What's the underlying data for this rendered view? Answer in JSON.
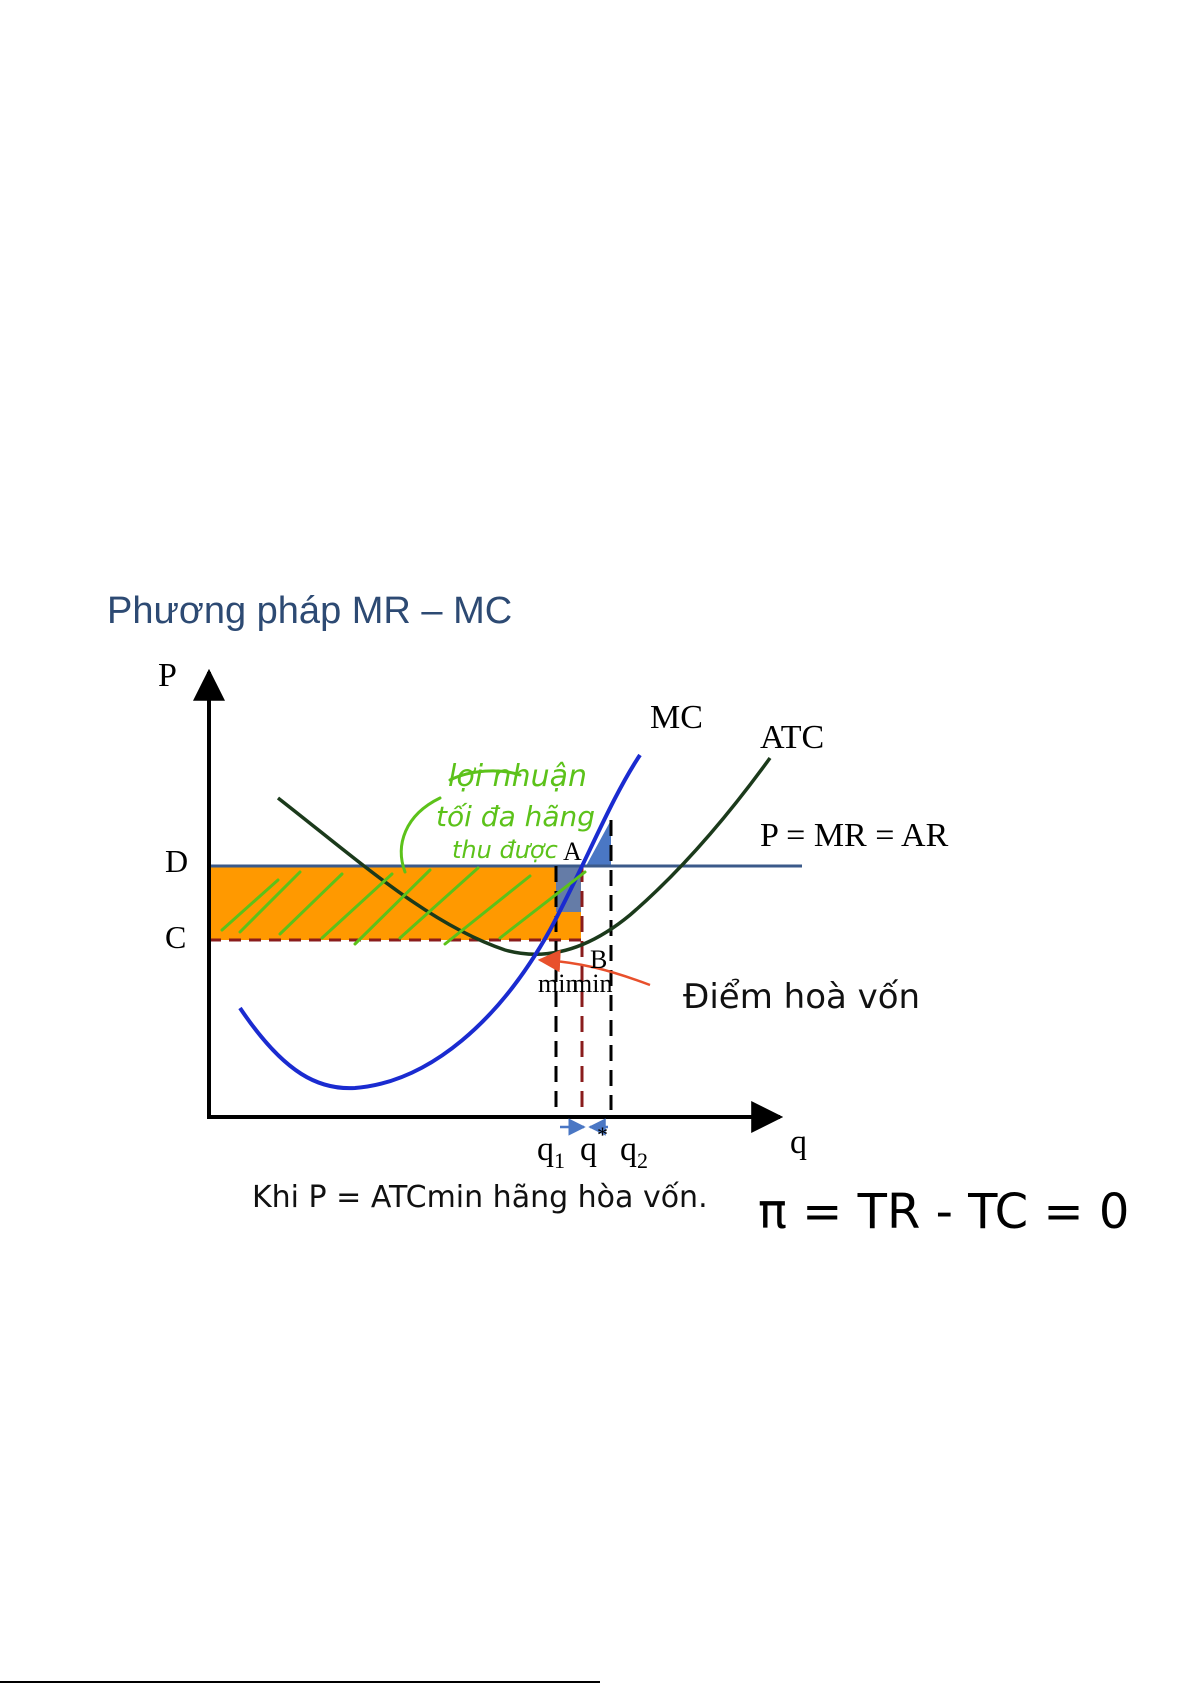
{
  "header": {
    "title": "Phương pháp MR – MC"
  },
  "diagram": {
    "axis_labels": {
      "y": "P",
      "x": "q"
    },
    "curve_labels": {
      "mc": "MC",
      "atc": "ATC",
      "price_line": "P = MR = AR"
    },
    "price_labels": {
      "d": "D",
      "c": "C"
    },
    "point_labels": {
      "a": "A",
      "b": "B"
    },
    "atc_min_label": "min",
    "mc_min_label": "min",
    "quantity_labels": {
      "q1": "q",
      "q1_sub": "1",
      "qstar": "q",
      "qstar_sup": "*",
      "q2": "q",
      "q2_sub": "2"
    },
    "annotation_break_even": "Điểm hoà vốn",
    "handwritten_note": [
      "lợi nhuận",
      "tối đa hãng",
      "thu được"
    ],
    "colors": {
      "profit_area": "#ff9900",
      "mc_curve": "#1a2bd0",
      "atc_curve": "#1b3a1b",
      "price_line": "#3b5a8a",
      "pointer_arrow": "#e8502c",
      "handwriting": "#5cc21a",
      "loss_triangle": "#4a77c4"
    }
  },
  "caption": {
    "text": "Khi P = ATCmin hãng hòa vốn."
  },
  "handwritten_formula": "π = TR - TC = 0"
}
